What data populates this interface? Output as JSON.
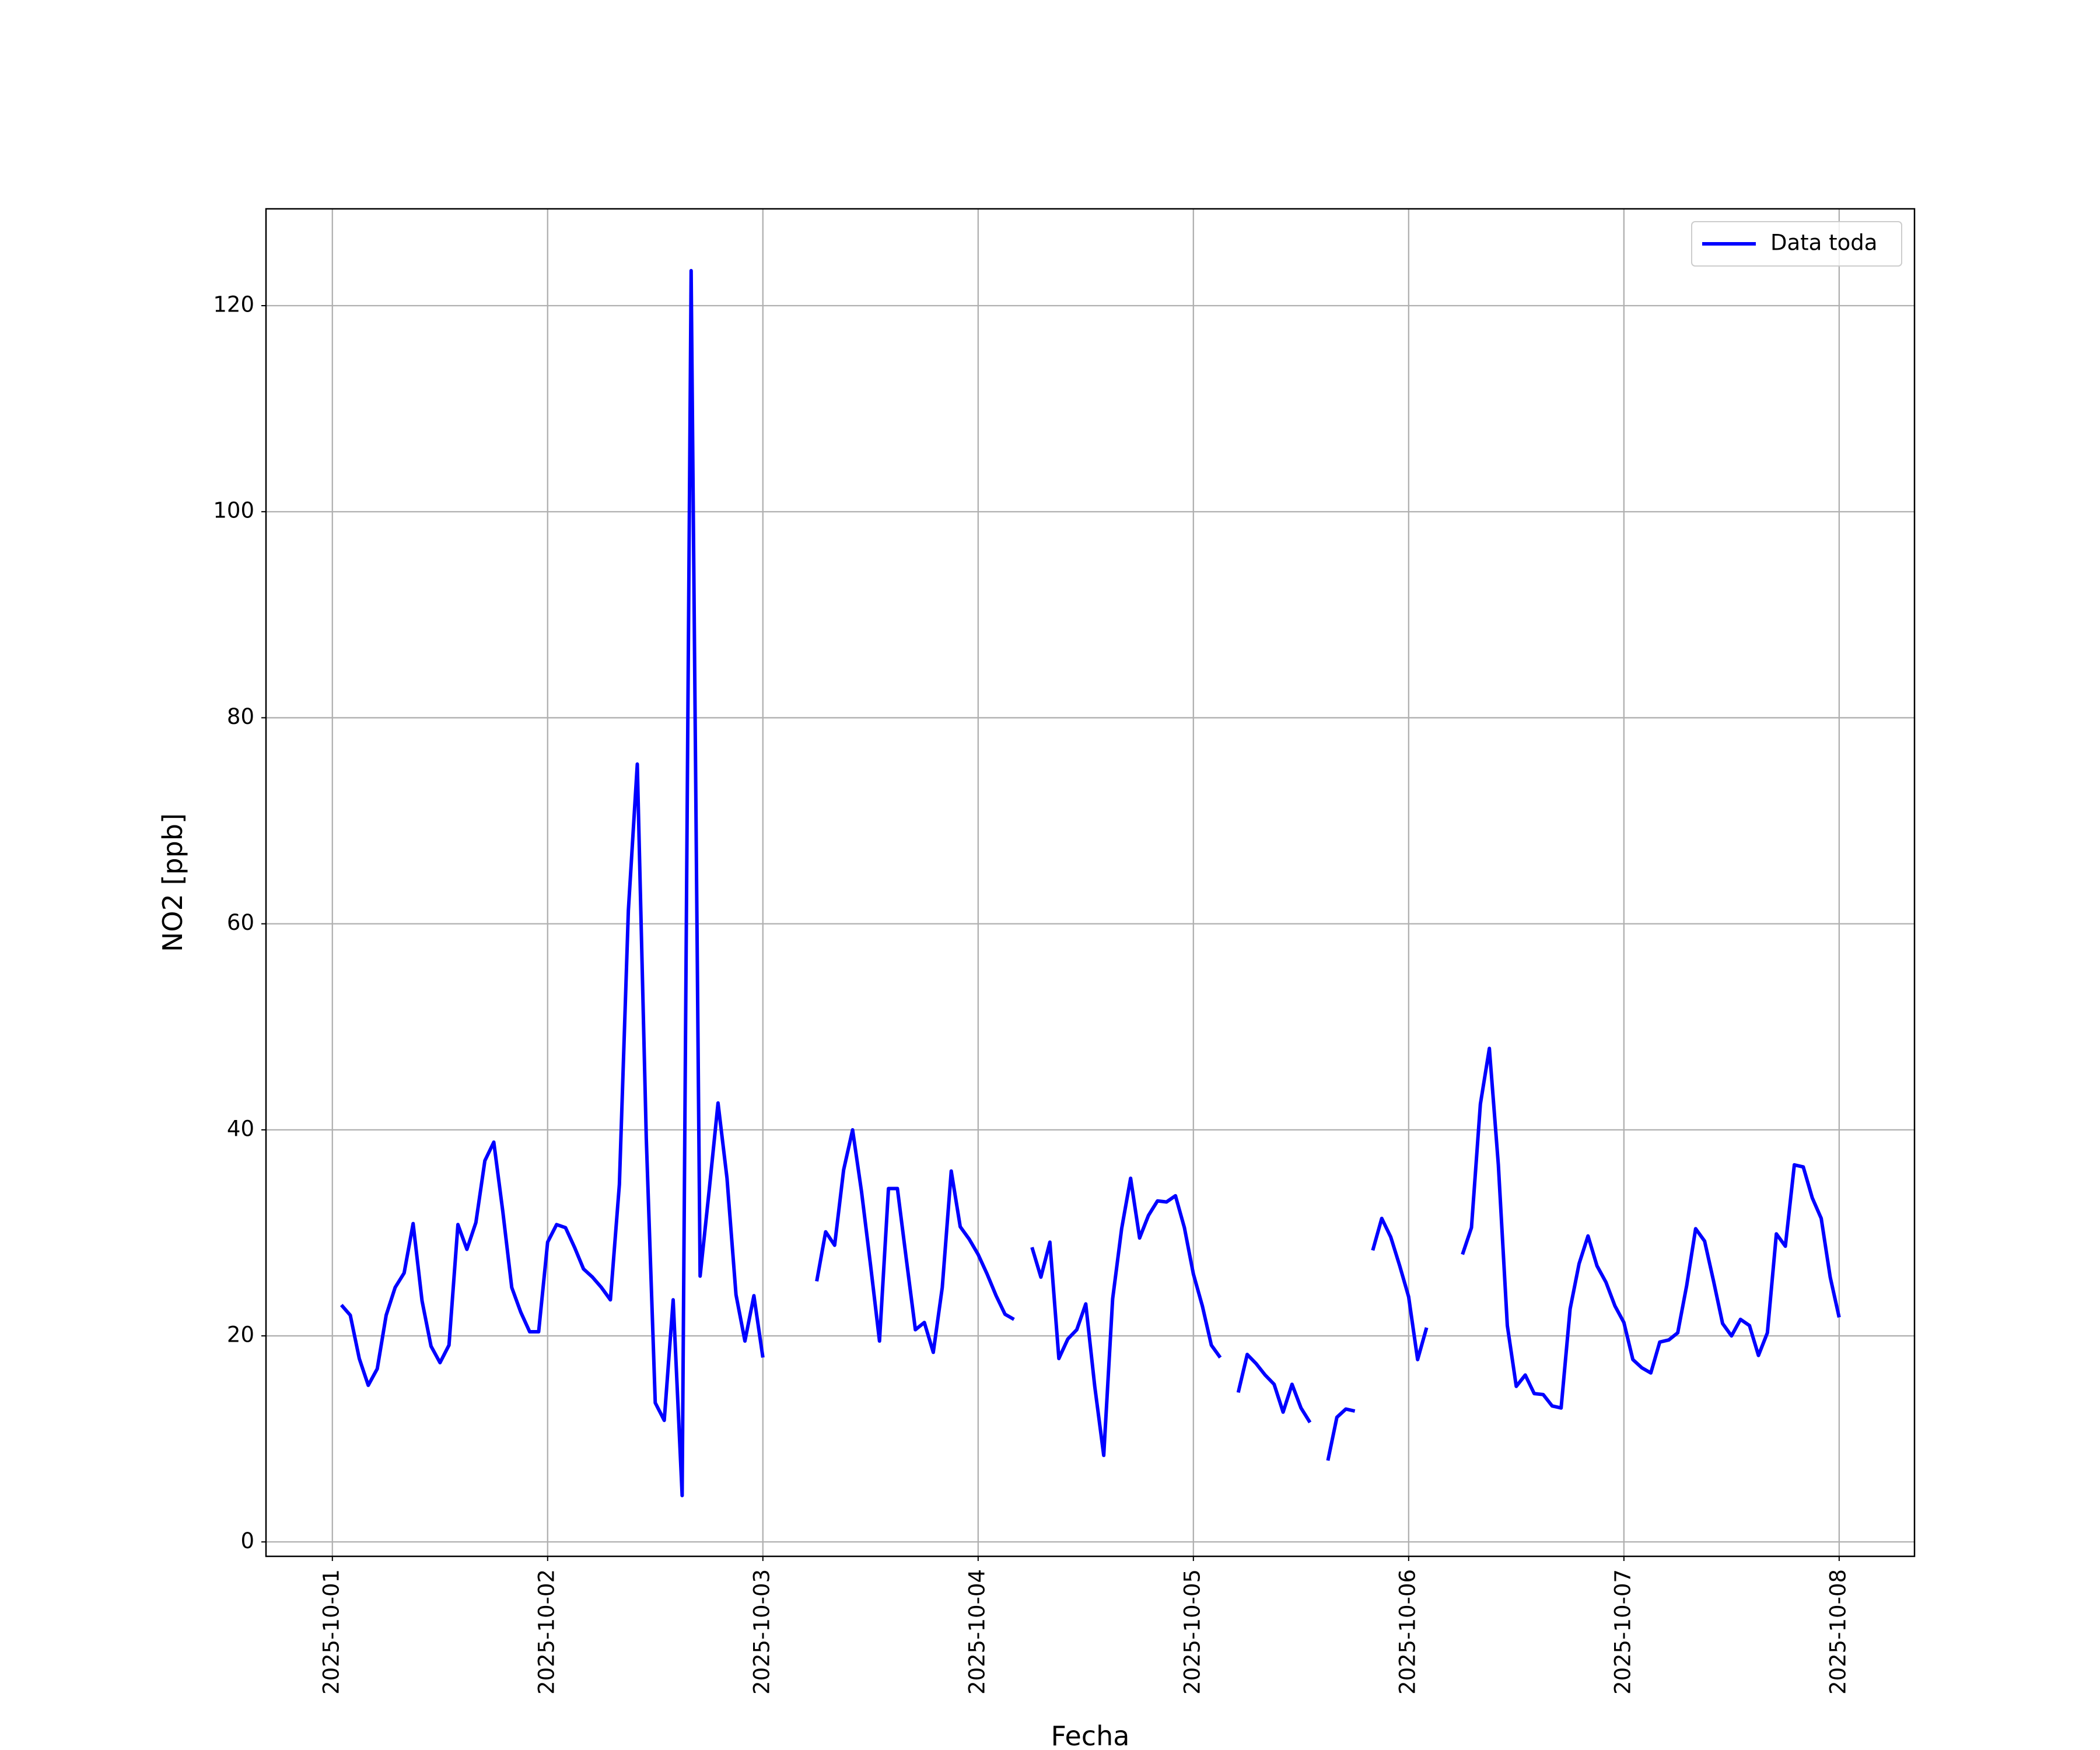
{
  "chart_data": {
    "type": "line",
    "x_label": "Fecha",
    "y_label": "NO2 [ppb]",
    "x": [
      1,
      2,
      3,
      4,
      5,
      6,
      7,
      8,
      9,
      10,
      11,
      12,
      13,
      14,
      15,
      16,
      17,
      18,
      19,
      20,
      21,
      22,
      23,
      24,
      25,
      26,
      27,
      28,
      29,
      30,
      31,
      32,
      33,
      34,
      35,
      36,
      37,
      38,
      39,
      40,
      41,
      42,
      43,
      44,
      45,
      46,
      47,
      48,
      49,
      50,
      51,
      52,
      53,
      54,
      55,
      56,
      57,
      58,
      59,
      60,
      61,
      62,
      63,
      64,
      65,
      66,
      67,
      68,
      69,
      70,
      71,
      72,
      73,
      74,
      75,
      76,
      77,
      78,
      79,
      80,
      81,
      82,
      83,
      84,
      85,
      86,
      87,
      88,
      89,
      90,
      91,
      92,
      93,
      94,
      95,
      96,
      97,
      98,
      99,
      100,
      101,
      102,
      103,
      104,
      105,
      106,
      107,
      108,
      109,
      110,
      111,
      112,
      113,
      114,
      115,
      116,
      117,
      118,
      119,
      120,
      121,
      122,
      123,
      124,
      125,
      126,
      127,
      128,
      129,
      130,
      131,
      132,
      133,
      134,
      135,
      136,
      137,
      138,
      139,
      140,
      141,
      142,
      143,
      144,
      145,
      146,
      147,
      148,
      149,
      150,
      151,
      152,
      153,
      154,
      155,
      156,
      157,
      158,
      159,
      160,
      161,
      162,
      163,
      164,
      165,
      166,
      167,
      168
    ],
    "series": [
      {
        "name": "Data toda",
        "color": "#0000ff",
        "values": [
          23,
          22,
          17.8,
          15.2,
          16.8,
          22,
          24.7,
          26.1,
          30.9,
          23.4,
          19,
          17.4,
          19.1,
          30.8,
          28.4,
          31,
          37,
          38.8,
          32.1,
          24.7,
          22.3,
          20.4,
          20.4,
          29.1,
          30.8,
          30.5,
          28.6,
          26.5,
          25.7,
          24.7,
          23.5,
          34.7,
          61.3,
          75.5,
          39.2,
          13.5,
          11.8,
          23.5,
          4.5,
          123.4,
          25.8,
          34,
          42.6,
          35.3,
          24,
          19.5,
          23.9,
          17.9,
          null,
          null,
          null,
          null,
          null,
          25.3,
          30.1,
          28.8,
          36.1,
          40,
          34,
          26.9,
          19.5,
          34.3,
          34.3,
          27.4,
          20.6,
          21.3,
          18.4,
          24.7,
          36,
          30.6,
          29.4,
          27.9,
          26,
          23.9,
          22.1,
          21.6,
          null,
          28.6,
          25.7,
          29.1,
          17.8,
          19.7,
          20.6,
          23.1,
          15.1,
          8.4,
          23.6,
          30.4,
          35.3,
          29.5,
          31.7,
          33.1,
          33,
          33.6,
          30.5,
          26,
          22.9,
          19.1,
          17.9,
          null,
          14.5,
          18.2,
          17.3,
          16.2,
          15.3,
          12.6,
          15.3,
          13,
          11.6,
          null,
          7.9,
          12.1,
          12.9,
          12.7,
          null,
          28.3,
          31.4,
          29.6,
          26.8,
          23.8,
          17.7,
          20.8,
          null,
          null,
          null,
          27.9,
          30.5,
          42.5,
          47.9,
          36.6,
          21,
          15.1,
          16.2,
          14.4,
          14.3,
          13.2,
          13,
          22.6,
          27,
          29.7,
          26.8,
          25.2,
          22.9,
          21.3,
          17.7,
          16.9,
          16.4,
          19.4,
          19.6,
          20.3,
          24.9,
          30.4,
          29.2,
          25.3,
          21.2,
          20,
          21.6,
          21,
          18.1,
          20.3,
          29.9,
          28.7,
          36.6,
          36.4,
          33.4,
          31.4,
          25.7,
          21.8
        ]
      }
    ],
    "xlim": [
      -7.4,
      176.4
    ],
    "xticks": [
      {
        "value": 0,
        "label": "2025-10-01"
      },
      {
        "value": 24,
        "label": "2025-10-02"
      },
      {
        "value": 48,
        "label": "2025-10-03"
      },
      {
        "value": 72,
        "label": "2025-10-04"
      },
      {
        "value": 96,
        "label": "2025-10-05"
      },
      {
        "value": 120,
        "label": "2025-10-06"
      },
      {
        "value": 144,
        "label": "2025-10-07"
      },
      {
        "value": 168,
        "label": "2025-10-08"
      }
    ],
    "ylim": [
      -1.4,
      129.4
    ],
    "yticks": [
      0,
      20,
      40,
      60,
      80,
      100,
      120
    ],
    "grid": true,
    "legend": "upper right"
  }
}
